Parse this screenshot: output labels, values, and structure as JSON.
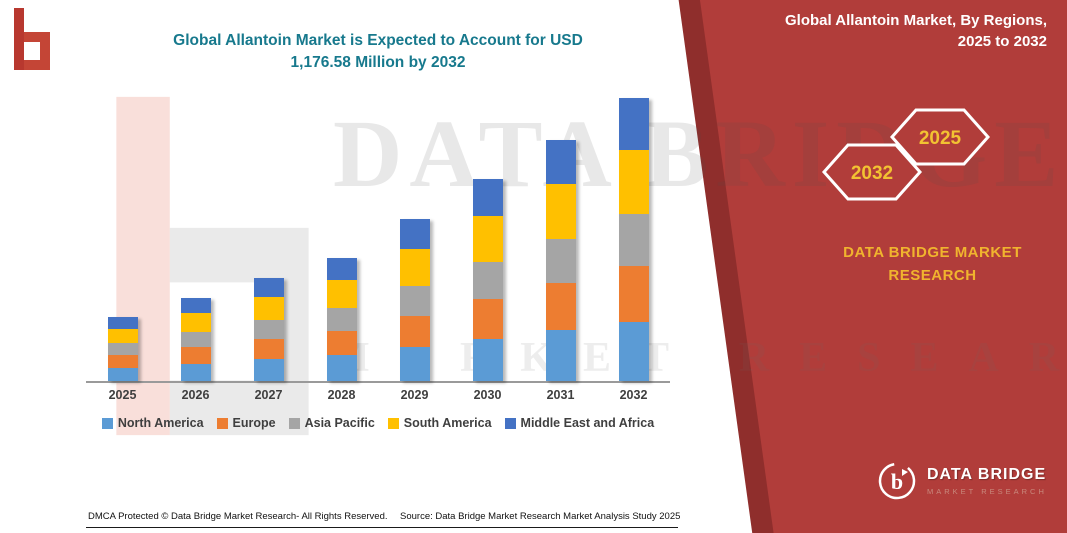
{
  "header": {
    "title_line1": "Global Allantoin Market is Expected to Account for USD",
    "title_line2": "1,176.58 Million by 2032"
  },
  "panel": {
    "title_line1": "Global Allantoin Market, By Regions,",
    "title_line2": "2025 to 2032",
    "hex_back": "2032",
    "hex_front": "2025",
    "brand_line1": "DATA BRIDGE MARKET",
    "brand_line2": "RESEARCH",
    "bg_color": "#b13d3a",
    "accent_color": "#f0b42e"
  },
  "watermark": {
    "line1": "DATA BRIDGE",
    "line2": "MARKET RESEARCH"
  },
  "logo": {
    "bottom_name": "DATA BRIDGE",
    "bottom_sub": "MARKET RESEARCH"
  },
  "footer": {
    "dmca": "DMCA Protected © Data Bridge Market Research-  All Rights Reserved.",
    "source": "Source: Data Bridge Market Research  Market Analysis Study 2025"
  },
  "chart_data": {
    "type": "bar",
    "stacked": true,
    "title": "Global Allantoin Market is Expected to Account for USD 1,176.58 Million by 2032",
    "unit": "USD Million",
    "categories": [
      "2025",
      "2026",
      "2027",
      "2028",
      "2029",
      "2030",
      "2031",
      "2032"
    ],
    "series": [
      {
        "name": "North America",
        "color": "#5B9BD5",
        "values": [
          55.6,
          72.5,
          90.1,
          107.7,
          141.1,
          176.4,
          210.8,
          247.1
        ]
      },
      {
        "name": "Europe",
        "color": "#ED7D31",
        "values": [
          51.7,
          67.3,
          83.7,
          100.0,
          131.0,
          163.8,
          195.8,
          229.4
        ]
      },
      {
        "name": "Asia Pacific",
        "color": "#A5A5A5",
        "values": [
          49.0,
          63.8,
          79.4,
          94.9,
          124.3,
          155.4,
          185.7,
          217.7
        ]
      },
      {
        "name": "South America",
        "color": "#FFC000",
        "values": [
          59.6,
          77.6,
          96.5,
          115.4,
          151.2,
          189.0,
          225.9,
          264.7
        ]
      },
      {
        "name": "Middle East and Africa",
        "color": "#4472C4",
        "values": [
          49.0,
          63.8,
          79.4,
          94.9,
          124.3,
          155.4,
          185.7,
          217.7
        ]
      }
    ],
    "totals": [
      264.9,
      345.0,
      429.1,
      512.9,
      671.9,
      840.0,
      1003.9,
      1176.6
    ],
    "ylim": [
      0,
      1200
    ],
    "y_axis_visible": false,
    "grid": false,
    "legend_position": "bottom"
  }
}
